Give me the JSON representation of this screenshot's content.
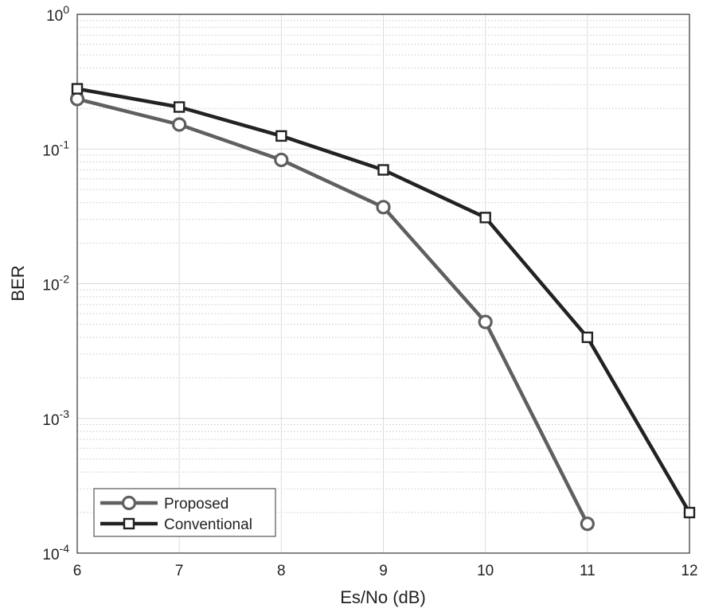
{
  "chart_data": {
    "type": "line",
    "xlabel": "Es/No (dB)",
    "ylabel": "BER",
    "xlim": [
      6,
      12
    ],
    "ylim": [
      0.0001,
      1
    ],
    "yscale": "log",
    "grid": true,
    "x_ticks": [
      6,
      7,
      8,
      9,
      10,
      11,
      12
    ],
    "y_ticks": [
      {
        "value": 1,
        "base": "10",
        "exp": "0"
      },
      {
        "value": 0.1,
        "base": "10",
        "exp": "-1"
      },
      {
        "value": 0.01,
        "base": "10",
        "exp": "-2"
      },
      {
        "value": 0.001,
        "base": "10",
        "exp": "-3"
      },
      {
        "value": 0.0001,
        "base": "10",
        "exp": "-4"
      }
    ],
    "legend_position": "bottom-left",
    "series": [
      {
        "name": "Proposed",
        "color": "#5f5f5f",
        "marker": "circle",
        "x": [
          6,
          7,
          8,
          9,
          10,
          11
        ],
        "y": [
          0.235,
          0.152,
          0.083,
          0.037,
          0.0052,
          0.000165
        ]
      },
      {
        "name": "Conventional",
        "color": "#222222",
        "marker": "square",
        "x": [
          6,
          7,
          8,
          9,
          10,
          11,
          12
        ],
        "y": [
          0.28,
          0.205,
          0.125,
          0.07,
          0.031,
          0.004,
          0.0002
        ]
      }
    ]
  }
}
